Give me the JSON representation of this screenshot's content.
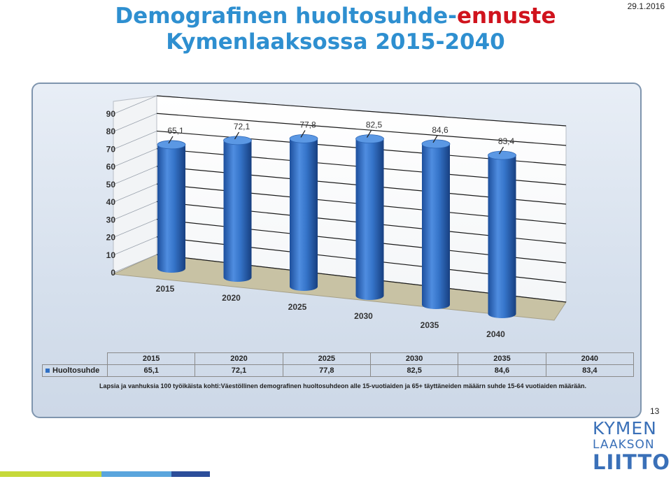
{
  "slide": {
    "title_part1": "Demografinen huoltosuhde-",
    "title_part2_red": "ennuste",
    "title_line2": "Kymenlaaksossa 2015-2040",
    "date": "29.1.2016",
    "page_number": "13",
    "logo_lines": [
      "KYMEN",
      "LAAKSON",
      "LIITTO"
    ]
  },
  "chart_data": {
    "type": "bar",
    "style": "3d-cylinder",
    "categories": [
      "2015",
      "2020",
      "2025",
      "2030",
      "2035",
      "2040"
    ],
    "series": [
      {
        "name": "Huoltosuhde",
        "values": [
          65.1,
          72.1,
          77.8,
          82.5,
          84.6,
          83.4
        ],
        "labels": [
          "65,1",
          "72,1",
          "77,8",
          "82,5",
          "84,6",
          "83,4"
        ],
        "color": "#2f6fc4"
      }
    ],
    "yticks": [
      "0",
      "10",
      "20",
      "30",
      "40",
      "50",
      "60",
      "70",
      "80",
      "90"
    ],
    "ylim": [
      0,
      90
    ],
    "grid": true,
    "table": {
      "row_header": "Huoltosuhde",
      "columns": [
        "2015",
        "2020",
        "2025",
        "2030",
        "2035",
        "2040"
      ],
      "values": [
        "65,1",
        "72,1",
        "77,8",
        "82,5",
        "84,6",
        "83,4"
      ]
    },
    "note": "Lapsia ja vanhuksia 100 työikäista kohti:Väestöllinen demografinen huoltosuhdeon alle 15-vuotiaiden ja 65+ täyttäneiden määärn suhde 15-64 vuotiaiden määrään."
  },
  "colors": {
    "title_blue": "#2e8fd0",
    "title_red": "#d0131d",
    "bar": "#2f6fc4",
    "panel_border": "#7f95ae"
  }
}
